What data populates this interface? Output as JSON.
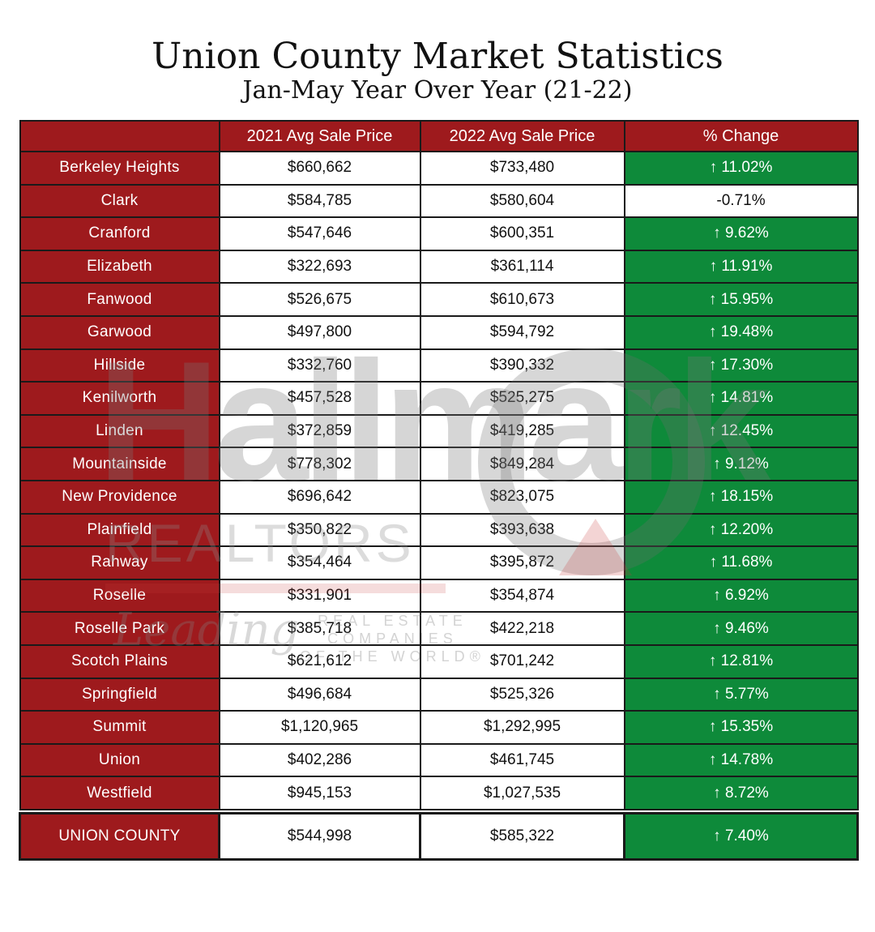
{
  "title": "Union County Market Statistics",
  "subtitle": "Jan-May Year Over Year (21-22)",
  "watermark": {
    "brand": "Hallmark",
    "sub": "REALTORS",
    "leading": "Leading",
    "tagline_1": "REAL ESTATE",
    "tagline_2": "COMPANIES",
    "tagline_3": "OF THE WORLD®"
  },
  "table": {
    "headers": [
      "",
      "2021 Avg Sale Price",
      "2022 Avg Sale Price",
      "% Change"
    ],
    "rows": [
      {
        "name": "Berkeley Heights",
        "y2021": "$660,662",
        "y2022": "$733,480",
        "change": "↑ 11.02%",
        "up": true
      },
      {
        "name": "Clark",
        "y2021": "$584,785",
        "y2022": "$580,604",
        "change": "-0.71%",
        "up": false
      },
      {
        "name": "Cranford",
        "y2021": "$547,646",
        "y2022": "$600,351",
        "change": "↑ 9.62%",
        "up": true
      },
      {
        "name": "Elizabeth",
        "y2021": "$322,693",
        "y2022": "$361,114",
        "change": "↑ 11.91%",
        "up": true
      },
      {
        "name": "Fanwood",
        "y2021": "$526,675",
        "y2022": "$610,673",
        "change": "↑ 15.95%",
        "up": true
      },
      {
        "name": "Garwood",
        "y2021": "$497,800",
        "y2022": "$594,792",
        "change": "↑ 19.48%",
        "up": true
      },
      {
        "name": "Hillside",
        "y2021": "$332,760",
        "y2022": "$390,332",
        "change": "↑ 17.30%",
        "up": true
      },
      {
        "name": "Kenilworth",
        "y2021": "$457,528",
        "y2022": "$525,275",
        "change": "↑ 14.81%",
        "up": true
      },
      {
        "name": "Linden",
        "y2021": "$372,859",
        "y2022": "$419,285",
        "change": "↑ 12.45%",
        "up": true
      },
      {
        "name": "Mountainside",
        "y2021": "$778,302",
        "y2022": "$849,284",
        "change": "↑ 9.12%",
        "up": true
      },
      {
        "name": "New Providence",
        "y2021": "$696,642",
        "y2022": "$823,075",
        "change": "↑ 18.15%",
        "up": true
      },
      {
        "name": "Plainfield",
        "y2021": "$350,822",
        "y2022": "$393,638",
        "change": "↑ 12.20%",
        "up": true
      },
      {
        "name": "Rahway",
        "y2021": "$354,464",
        "y2022": "$395,872",
        "change": "↑ 11.68%",
        "up": true
      },
      {
        "name": "Roselle",
        "y2021": "$331,901",
        "y2022": "$354,874",
        "change": "↑ 6.92%",
        "up": true
      },
      {
        "name": "Roselle Park",
        "y2021": "$385,718",
        "y2022": "$422,218",
        "change": "↑ 9.46%",
        "up": true
      },
      {
        "name": "Scotch Plains",
        "y2021": "$621,612",
        "y2022": "$701,242",
        "change": "↑ 12.81%",
        "up": true
      },
      {
        "name": "Springfield",
        "y2021": "$496,684",
        "y2022": "$525,326",
        "change": "↑ 5.77%",
        "up": true
      },
      {
        "name": "Summit",
        "y2021": "$1,120,965",
        "y2022": "$1,292,995",
        "change": "↑ 15.35%",
        "up": true
      },
      {
        "name": "Union",
        "y2021": "$402,286",
        "y2022": "$461,745",
        "change": "↑ 14.78%",
        "up": true
      },
      {
        "name": "Westfield",
        "y2021": "$945,153",
        "y2022": "$1,027,535",
        "change": "↑ 8.72%",
        "up": true
      }
    ],
    "total": {
      "name": "UNION COUNTY",
      "y2021": "$544,998",
      "y2022": "$585,322",
      "change": "↑ 7.40%",
      "up": true
    }
  },
  "colors": {
    "header_red": "#9e1a1d",
    "increase_green": "#0e8a3a",
    "border": "#1a1a1a"
  }
}
